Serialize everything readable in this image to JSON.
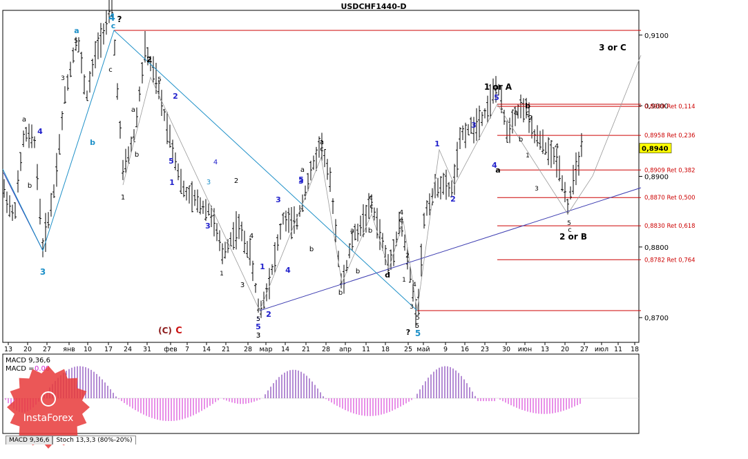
{
  "title": "USDCHF1440-D",
  "chart_data": [
    {
      "type": "candlestick",
      "symbol": "USDCHF",
      "timeframe": "D",
      "ylim": [
        0.8665,
        0.9135
      ],
      "y_ticks": [
        "0,9100",
        "0,9000",
        "0,8900",
        "0,8800",
        "0,8700"
      ],
      "current_price": "0,8940",
      "x_ticks": [
        "13",
        "20",
        "27",
        "янв",
        "10",
        "17",
        "24",
        "31",
        "фев",
        "7",
        "14",
        "21",
        "28",
        "мар",
        "14",
        "21",
        "28",
        "апр",
        "11",
        "18",
        "25",
        "май",
        "9",
        "16",
        "23",
        "30",
        "июн",
        "13",
        "20",
        "27",
        "июл",
        "11",
        "18",
        "25"
      ],
      "fib_levels": [
        {
          "price": 0.8999,
          "label": "0,8999 Ret 0,114"
        },
        {
          "price": 0.8958,
          "label": "0,8958 Ret 0,236"
        },
        {
          "price": 0.8909,
          "label": "0,8909 Ret 0,382"
        },
        {
          "price": 0.887,
          "label": "0,8870 Ret 0,500"
        },
        {
          "price": 0.883,
          "label": "0,8830 Ret 0,618"
        },
        {
          "price": 0.8782,
          "label": "0,8782 Ret 0,764"
        }
      ],
      "wave_annotations": [
        {
          "text": "4",
          "color": "#1e90c8"
        },
        {
          "text": "?",
          "color": "#000000"
        },
        {
          "text": "a",
          "color": "#1e90c8"
        },
        {
          "text": "c",
          "color": "#1e90c8"
        },
        {
          "text": "5",
          "color": "#000000"
        },
        {
          "text": "3",
          "color": "#000000"
        },
        {
          "text": "4",
          "color": "#2222cc"
        },
        {
          "text": "c",
          "color": "#000000"
        },
        {
          "text": "a",
          "color": "#000000"
        },
        {
          "text": "b",
          "color": "#000000"
        },
        {
          "text": "b",
          "color": "#1e90c8"
        },
        {
          "text": "2",
          "color": "#000000"
        },
        {
          "text": "2",
          "color": "#2222cc"
        },
        {
          "text": "5",
          "color": "#000000"
        },
        {
          "text": "3",
          "color": "#2222cc"
        },
        {
          "text": "5",
          "color": "#2222cc"
        },
        {
          "text": "3",
          "color": "#1e90c8"
        },
        {
          "text": "1",
          "color": "#000000"
        },
        {
          "text": "a",
          "color": "#000000"
        },
        {
          "text": "b",
          "color": "#000000"
        },
        {
          "text": "1",
          "color": "#2222cc"
        },
        {
          "text": "4",
          "color": "#2222cc"
        },
        {
          "text": "2",
          "color": "#000000"
        },
        {
          "text": "3",
          "color": "#2222cc"
        },
        {
          "text": "1",
          "color": "#000000"
        },
        {
          "text": "4",
          "color": "#000000"
        },
        {
          "text": "3",
          "color": "#2222cc"
        },
        {
          "text": "1",
          "color": "#2222cc"
        },
        {
          "text": "3",
          "color": "#000000"
        },
        {
          "text": "5",
          "color": "#000000"
        },
        {
          "text": "5",
          "color": "#2222cc"
        },
        {
          "text": "3",
          "color": "#000000"
        },
        {
          "text": "2",
          "color": "#2222cc"
        },
        {
          "text": "4",
          "color": "#2222cc"
        },
        {
          "text": "5",
          "color": "#2222cc"
        },
        {
          "text": "a",
          "color": "#000000"
        },
        {
          "text": "b",
          "color": "#000000"
        },
        {
          "text": "a",
          "color": "#000000"
        },
        {
          "text": "c",
          "color": "#000000"
        },
        {
          "text": "b",
          "color": "#000000"
        },
        {
          "text": "c",
          "color": "#000000"
        },
        {
          "text": "a",
          "color": "#000000"
        },
        {
          "text": "b",
          "color": "#000000"
        },
        {
          "text": "b",
          "color": "#000000"
        },
        {
          "text": "c",
          "color": "#000000"
        },
        {
          "text": "d",
          "color": "#000000"
        },
        {
          "text": "4",
          "color": "#000000"
        },
        {
          "text": "e",
          "color": "#000000"
        },
        {
          "text": "2",
          "color": "#000000"
        },
        {
          "text": "1",
          "color": "#000000"
        },
        {
          "text": "4",
          "color": "#000000"
        },
        {
          "text": "3",
          "color": "#000000"
        },
        {
          "text": "5",
          "color": "#000000"
        },
        {
          "text": "5",
          "color": "#000000"
        },
        {
          "text": "5",
          "color": "#1e90c8"
        },
        {
          "text": "?",
          "color": "#000000"
        },
        {
          "text": "1",
          "color": "#2222cc"
        },
        {
          "text": "2",
          "color": "#2222cc"
        },
        {
          "text": "3",
          "color": "#2222cc"
        },
        {
          "text": "4",
          "color": "#2222cc"
        },
        {
          "text": "5",
          "color": "#2222cc"
        },
        {
          "text": "1 or A",
          "color": "#000000"
        },
        {
          "text": "a",
          "color": "#000000"
        },
        {
          "text": "a",
          "color": "#000000"
        },
        {
          "text": "b",
          "color": "#000000"
        },
        {
          "text": "c",
          "color": "#000000"
        },
        {
          "text": "2",
          "color": "#000000"
        },
        {
          "text": "b",
          "color": "#000000"
        },
        {
          "text": "1",
          "color": "#000000"
        },
        {
          "text": "3",
          "color": "#000000"
        },
        {
          "text": "4",
          "color": "#000000"
        },
        {
          "text": "5",
          "color": "#000000"
        },
        {
          "text": "c",
          "color": "#000000"
        },
        {
          "text": "2 or B",
          "color": "#000000"
        },
        {
          "text": "3 or C",
          "color": "#000000"
        },
        {
          "text": "(C)",
          "color": "#8b1a1a"
        },
        {
          "text": "C",
          "color": "#cc1111"
        },
        {
          "text": "5",
          "color": "#2222cc"
        },
        {
          "text": "3",
          "color": "#000000"
        },
        {
          "text": "2",
          "color": "#2222cc"
        },
        {
          "text": "5",
          "color": "#2222cc"
        },
        {
          "text": "3",
          "color": "#1e90c8"
        },
        {
          "text": "2",
          "color": "#000000"
        },
        {
          "text": "5",
          "color": "#000000"
        }
      ],
      "candles_note": "daily OHLC bars, approximate",
      "ohlc": []
    },
    {
      "type": "histogram",
      "name": "MACD",
      "params": "9,36,6",
      "label": "MACD 9,36,6",
      "label2_prefix": "MACD = ",
      "label2_value": "0.00",
      "ylim": [
        -0.006,
        0.006
      ]
    }
  ],
  "tabs": [
    "MACD 9,36,6",
    "Stoch 13,3,3 (80%-20%)"
  ],
  "watermark": "InstaForex",
  "colors": {
    "axis": "#000000",
    "fib": "#cc0000",
    "channel": "#3a3ab0",
    "wave_line_blue": "#1e90c8",
    "wave_line_gray": "#999999",
    "macd_pos": "#6a1aa8",
    "macd_neg": "#d020d0",
    "price_box": "#ffff00",
    "watermark": "#e83a3a"
  }
}
